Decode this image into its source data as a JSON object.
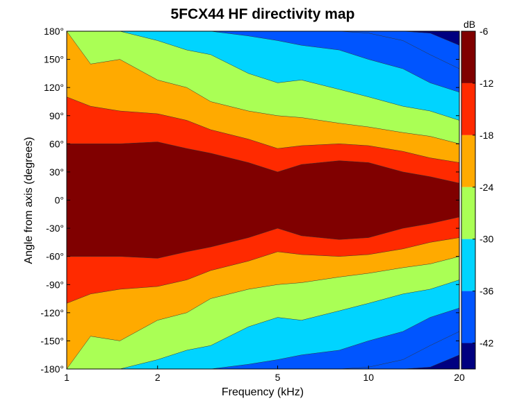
{
  "chart_data": {
    "type": "heatmap",
    "title": "5FCX44 HF directivity map",
    "xlabel": "Frequency (kHz)",
    "ylabel": "Angle from axis (degrees)",
    "x_scale": "log",
    "xlim": [
      1,
      20
    ],
    "ylim": [
      -180,
      180
    ],
    "x_ticks": [
      1,
      2,
      5,
      10,
      20
    ],
    "x_tick_labels": [
      "1",
      "2",
      "5",
      "10",
      "20"
    ],
    "y_ticks": [
      180,
      150,
      120,
      90,
      60,
      30,
      0,
      -30,
      -60,
      -90,
      -120,
      -150,
      -180
    ],
    "y_tick_labels": [
      "180°",
      "150°",
      "120°",
      "90°",
      "60°",
      "30°",
      "0°",
      "-30°",
      "-60°",
      "-90°",
      "-120°",
      "-150°",
      "-180°"
    ],
    "colorbar": {
      "label": "dB",
      "range": [
        -45,
        -6
      ],
      "ticks": [
        -6,
        -12,
        -18,
        -24,
        -30,
        -36,
        -42
      ],
      "tick_labels": [
        "-6",
        "-12",
        "-18",
        "-24",
        "-30",
        "-36",
        "-42"
      ],
      "levels": [
        {
          "upper": -6,
          "color": "#800000"
        },
        {
          "upper": -12,
          "color": "#ff2a00"
        },
        {
          "upper": -18,
          "color": "#ffaa00"
        },
        {
          "upper": -24,
          "color": "#aaff55"
        },
        {
          "upper": -30,
          "color": "#00d4ff"
        },
        {
          "upper": -36,
          "color": "#0055ff"
        },
        {
          "upper": -42,
          "color": "#000080"
        }
      ]
    },
    "contour_boundaries": {
      "note_units": "angle in degrees where each level ends, per frequency (kHz)",
      "frequencies": [
        1,
        1.2,
        1.5,
        2,
        2.5,
        3,
        4,
        5,
        6,
        8,
        10,
        13,
        16,
        20
      ],
      "minus6": [
        60,
        60,
        60,
        62,
        55,
        50,
        40,
        30,
        38,
        42,
        40,
        30,
        25,
        18
      ],
      "minus12": [
        110,
        100,
        95,
        92,
        85,
        75,
        65,
        55,
        58,
        60,
        58,
        52,
        45,
        40
      ],
      "minus18": [
        180,
        145,
        150,
        128,
        120,
        105,
        95,
        90,
        88,
        82,
        78,
        72,
        68,
        60
      ],
      "minus24": [
        180,
        180,
        180,
        170,
        160,
        155,
        135,
        125,
        128,
        118,
        110,
        100,
        95,
        85
      ],
      "minus30": [
        180,
        180,
        180,
        180,
        180,
        180,
        175,
        170,
        165,
        160,
        150,
        140,
        125,
        115
      ],
      "minus36": [
        180,
        180,
        180,
        180,
        180,
        180,
        180,
        180,
        180,
        180,
        178,
        170,
        155,
        140
      ],
      "minus42": [
        180,
        180,
        180,
        180,
        180,
        180,
        180,
        180,
        180,
        180,
        180,
        180,
        178,
        165
      ]
    }
  }
}
